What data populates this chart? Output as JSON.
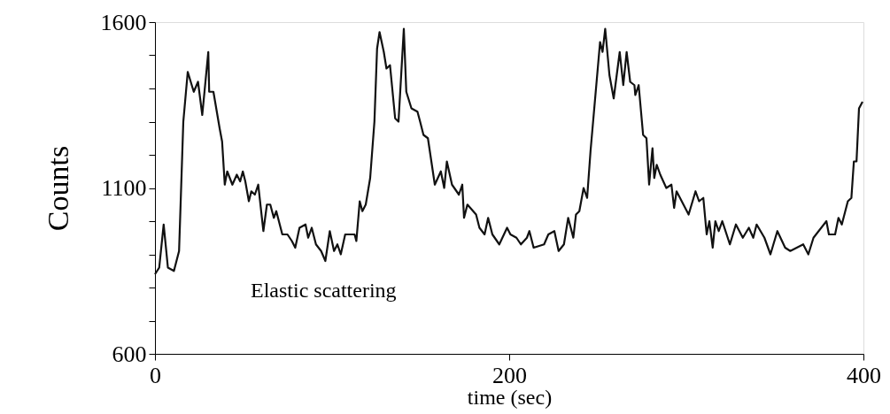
{
  "chart_data": {
    "type": "line",
    "xlabel": "time (sec)",
    "ylabel": "Counts",
    "annotations": [
      "Elastic scattering"
    ],
    "xlim": [
      0,
      400
    ],
    "xticks": [
      0,
      200,
      400
    ],
    "ylim": [
      600,
      1600
    ],
    "yticks": [
      600,
      {
        "value": 700,
        "label": null
      },
      {
        "value": 800,
        "label": null
      },
      {
        "value": 900,
        "label": null
      },
      {
        "value": 1000,
        "label": null
      },
      1100,
      {
        "value": 1200,
        "label": null
      },
      {
        "value": 1300,
        "label": null
      },
      {
        "value": 1400,
        "label": null
      },
      {
        "value": 1500,
        "label": null
      },
      1600
    ],
    "grid": false,
    "marker": "none",
    "line_style": "solid",
    "series": [
      {
        "color": "#111111",
        "x": [
          0,
          2.4,
          4.9,
          7.3,
          10.7,
          13.6,
          16,
          18.5,
          21.9,
          24.3,
          26.7,
          30.1,
          30.6,
          33,
          36.5,
          37.9,
          39.4,
          40.8,
          43.7,
          46.2,
          48.1,
          49.6,
          51,
          53,
          54.4,
          56.4,
          58.3,
          61.2,
          63.2,
          65.1,
          67.1,
          68.5,
          71.9,
          74.8,
          77.3,
          79.2,
          81.6,
          85,
          86.5,
          88.5,
          90.9,
          93.8,
          96.2,
          98.7,
          101.1,
          103,
          104.9,
          107.4,
          112.7,
          113.7,
          115.6,
          117.1,
          119,
          121.5,
          123.9,
          125.4,
          126.8,
          129.2,
          130.7,
          132.7,
          135.6,
          137.5,
          140.5,
          141.9,
          144.8,
          148.2,
          149.7,
          151.6,
          154.1,
          158,
          161.4,
          163.3,
          164.8,
          167.7,
          171.6,
          173.5,
          174.5,
          176.4,
          181.3,
          183.2,
          186.1,
          188.1,
          190.5,
          194.4,
          198.8,
          200.7,
          204.1,
          206.6,
          210,
          211.4,
          213.8,
          219.7,
          222.1,
          225.5,
          227.9,
          230.9,
          233.3,
          236.2,
          237.7,
          239.6,
          242,
          244,
          245.9,
          251.3,
          252.7,
          254.2,
          256.6,
          259,
          262.4,
          264.4,
          266.3,
          268.3,
          270.7,
          271.2,
          273.1,
          275.6,
          277.5,
          279,
          280.9,
          281.9,
          283.3,
          285.3,
          288.7,
          291.6,
          293.1,
          294.5,
          301.3,
          305.2,
          307.2,
          309.6,
          311.5,
          313,
          314.9,
          316.4,
          318.3,
          320.3,
          324.6,
          328,
          331.9,
          335.3,
          337.8,
          339.7,
          344.1,
          347.5,
          351.4,
          355.8,
          358.7,
          366,
          368.9,
          371.8,
          379.1,
          380.5,
          384,
          385.9,
          387.8,
          391.2,
          393.2,
          394.6,
          396.1,
          397.5,
          399.5
        ],
        "values": [
          840,
          860,
          990,
          860,
          850,
          910,
          1300,
          1450,
          1390,
          1420,
          1320,
          1510,
          1390,
          1390,
          1280,
          1240,
          1110,
          1150,
          1110,
          1140,
          1120,
          1150,
          1120,
          1060,
          1090,
          1080,
          1110,
          970,
          1050,
          1050,
          1010,
          1030,
          960,
          960,
          940,
          920,
          980,
          990,
          950,
          980,
          930,
          910,
          880,
          970,
          910,
          930,
          900,
          960,
          960,
          940,
          1060,
          1030,
          1050,
          1130,
          1300,
          1520,
          1570,
          1510,
          1460,
          1470,
          1310,
          1300,
          1580,
          1390,
          1340,
          1330,
          1300,
          1260,
          1250,
          1110,
          1150,
          1100,
          1180,
          1110,
          1080,
          1110,
          1010,
          1050,
          1020,
          980,
          960,
          1010,
          960,
          930,
          980,
          960,
          950,
          930,
          950,
          970,
          920,
          930,
          960,
          970,
          910,
          930,
          1010,
          950,
          1020,
          1030,
          1100,
          1070,
          1210,
          1540,
          1510,
          1580,
          1440,
          1370,
          1510,
          1410,
          1510,
          1420,
          1410,
          1380,
          1410,
          1260,
          1250,
          1110,
          1220,
          1130,
          1170,
          1140,
          1100,
          1110,
          1040,
          1090,
          1020,
          1090,
          1060,
          1070,
          960,
          1000,
          920,
          1000,
          970,
          1000,
          930,
          990,
          950,
          980,
          950,
          990,
          950,
          900,
          970,
          920,
          910,
          930,
          900,
          950,
          1000,
          960,
          960,
          1010,
          990,
          1060,
          1070,
          1180,
          1180,
          1340,
          1360
        ]
      }
    ]
  }
}
